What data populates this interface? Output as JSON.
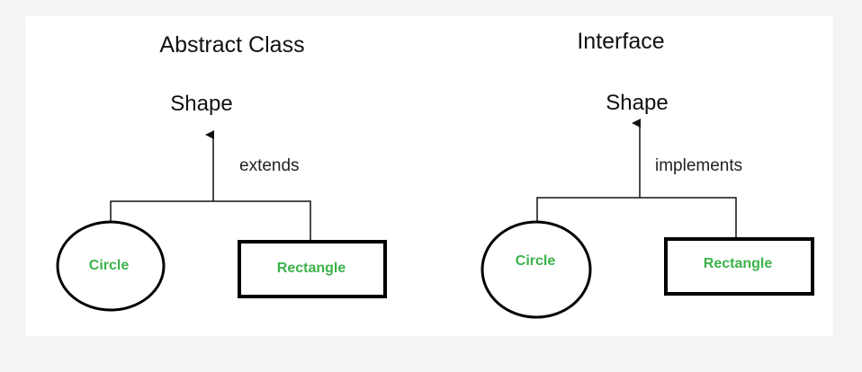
{
  "colors": {
    "background": "#ffffff",
    "page": "#f4f4f4",
    "lines": "#111111",
    "node_label": "#3cb34a"
  },
  "panels": [
    {
      "title": "Abstract Class",
      "parent": "Shape",
      "relation": "extends",
      "children": [
        "Circle",
        "Rectangle"
      ]
    },
    {
      "title": "Interface",
      "parent": "Shape",
      "relation": "implements",
      "children": [
        "Circle",
        "Rectangle"
      ]
    }
  ]
}
